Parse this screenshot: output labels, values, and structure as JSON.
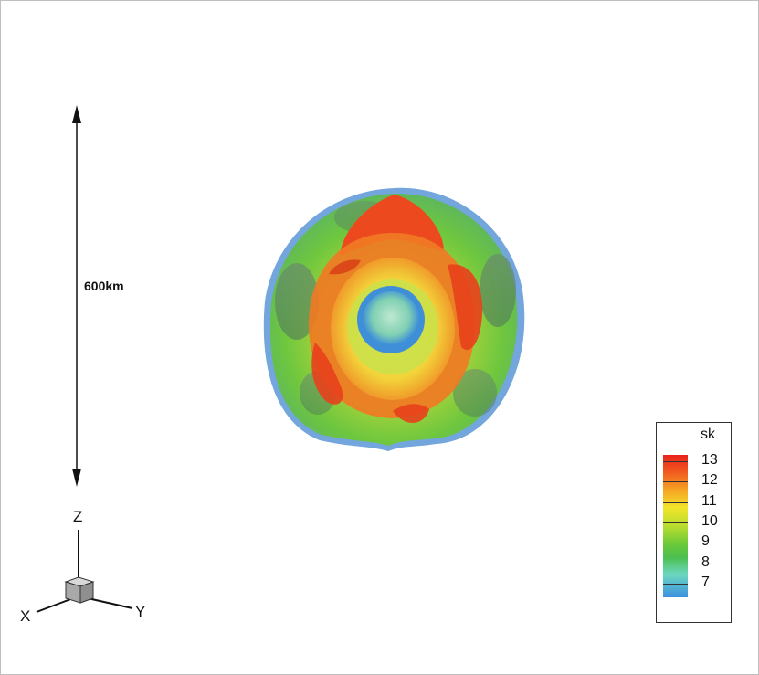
{
  "scale_bar": {
    "label": "600km"
  },
  "axes_triad": {
    "z_label": "Z",
    "x_label": "X",
    "y_label": "Y"
  },
  "legend": {
    "title": "sk",
    "ticks": [
      "13",
      "12",
      "11",
      "10",
      "9",
      "8",
      "7"
    ]
  },
  "colors": {
    "red": "#e8231c",
    "orange": "#f15a1e",
    "yellow": "#f2e52a",
    "green": "#69c93a",
    "cyan": "#6cd8c0",
    "blue": "#3a8fe0"
  }
}
